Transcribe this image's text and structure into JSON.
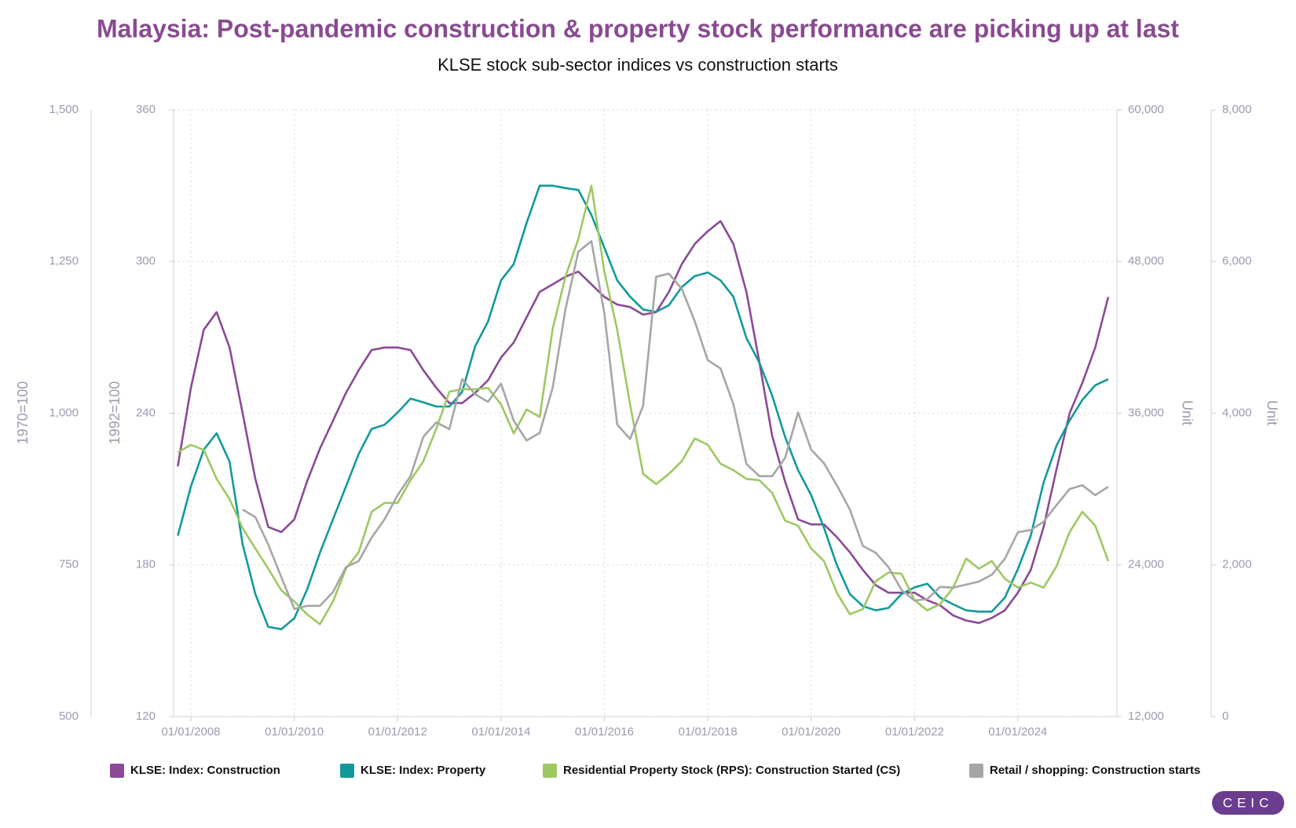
{
  "chart_data": {
    "type": "line",
    "title": "Malaysia: Post-pandemic construction & property stock performance are picking up at last",
    "subtitle": "KLSE stock sub-sector indices vs construction starts",
    "ylabel": "1970=100",
    "y2label": "1992=100",
    "y3label": "Unit",
    "y4label": "Unit",
    "logo": "CEIC",
    "grid": true,
    "legend": "bottom",
    "xlim": [
      "2007-09-01",
      "2025-12-01"
    ],
    "xticks": [
      {
        "value": "2008-01-01",
        "label": "01/01/2008"
      },
      {
        "value": "2010-01-01",
        "label": "01/01/2010"
      },
      {
        "value": "2012-01-01",
        "label": "01/01/2012"
      },
      {
        "value": "2014-01-01",
        "label": "01/01/2014"
      },
      {
        "value": "2016-01-01",
        "label": "01/01/2016"
      },
      {
        "value": "2018-01-01",
        "label": "01/01/2018"
      },
      {
        "value": "2020-01-01",
        "label": "01/01/2020"
      },
      {
        "value": "2022-01-01",
        "label": "01/01/2022"
      },
      {
        "value": "2024-01-01",
        "label": "01/01/2024"
      }
    ],
    "ylim": [
      500,
      1500
    ],
    "yticks": [
      500,
      750,
      {
        "value": 1000,
        "label": "1,000"
      },
      {
        "value": 1250,
        "label": "1,250"
      },
      {
        "value": 1500,
        "label": "1,500"
      }
    ],
    "y2lim": [
      120,
      360
    ],
    "y2ticks": [
      120,
      180,
      240,
      300,
      360
    ],
    "y3lim": [
      12000,
      60000
    ],
    "y3ticks": [
      {
        "value": 12000,
        "label": "12,000"
      },
      {
        "value": 24000,
        "label": "24,000"
      },
      {
        "value": 36000,
        "label": "36,000"
      },
      {
        "value": 48000,
        "label": "48,000"
      },
      {
        "value": 60000,
        "label": "60,000"
      }
    ],
    "y4lim": [
      0,
      8000
    ],
    "y4ticks": [
      0,
      {
        "value": 2000,
        "label": "2,000"
      },
      {
        "value": 4000,
        "label": "4,000"
      },
      {
        "value": 6000,
        "label": "6,000"
      },
      {
        "value": 8000,
        "label": "8,000"
      }
    ],
    "x": [
      "2007-10-01",
      "2008-01-01",
      "2008-04-01",
      "2008-07-01",
      "2008-10-01",
      "2009-01-01",
      "2009-04-01",
      "2009-07-01",
      "2009-10-01",
      "2010-01-01",
      "2010-04-01",
      "2010-07-01",
      "2010-10-01",
      "2011-01-01",
      "2011-04-01",
      "2011-07-01",
      "2011-10-01",
      "2012-01-01",
      "2012-04-01",
      "2012-07-01",
      "2012-10-01",
      "2013-01-01",
      "2013-04-01",
      "2013-07-01",
      "2013-10-01",
      "2014-01-01",
      "2014-04-01",
      "2014-07-01",
      "2014-10-01",
      "2015-01-01",
      "2015-04-01",
      "2015-07-01",
      "2015-10-01",
      "2016-01-01",
      "2016-04-01",
      "2016-07-01",
      "2016-10-01",
      "2017-01-01",
      "2017-04-01",
      "2017-07-01",
      "2017-10-01",
      "2018-01-01",
      "2018-04-01",
      "2018-07-01",
      "2018-10-01",
      "2019-01-01",
      "2019-04-01",
      "2019-07-01",
      "2019-10-01",
      "2020-01-01",
      "2020-04-01",
      "2020-07-01",
      "2020-10-01",
      "2021-01-01",
      "2021-04-01",
      "2021-07-01",
      "2021-10-01",
      "2022-01-01",
      "2022-04-01",
      "2022-07-01",
      "2022-10-01",
      "2023-01-01",
      "2023-04-01",
      "2023-07-01",
      "2023-10-01",
      "2024-01-01",
      "2024-04-01",
      "2024-07-01",
      "2024-10-01",
      "2025-01-01",
      "2025-04-01",
      "2025-07-01",
      "2025-10-01"
    ],
    "series": [
      {
        "name": "KLSE: Index: Construction",
        "color": "#8b4a96",
        "axis": "y2",
        "values": [
          219,
          250,
          273,
          280,
          266,
          240,
          214,
          195,
          193,
          198,
          213,
          226,
          237,
          248,
          257,
          265,
          266,
          266,
          265,
          257,
          250,
          244,
          244,
          248,
          253,
          262,
          268,
          278,
          288,
          291,
          294,
          296,
          291,
          286,
          283,
          282,
          279,
          280,
          288,
          299,
          307,
          312,
          316,
          307,
          288,
          260,
          231,
          213,
          198,
          196,
          196,
          191,
          185,
          178,
          172,
          169,
          169,
          169,
          166,
          164,
          160,
          158,
          157,
          159,
          162,
          169,
          178,
          195,
          218,
          240,
          252,
          266,
          286
        ]
      },
      {
        "name": "KLSE: Index: Property",
        "color": "#13999a",
        "axis": "y",
        "values": [
          798,
          879,
          940,
          967,
          920,
          784,
          702,
          648,
          644,
          662,
          709,
          770,
          825,
          879,
          933,
          974,
          981,
          1001,
          1024,
          1018,
          1011,
          1011,
          1035,
          1110,
          1151,
          1219,
          1246,
          1314,
          1375,
          1375,
          1371,
          1368,
          1327,
          1273,
          1219,
          1192,
          1171,
          1167,
          1178,
          1208,
          1226,
          1232,
          1219,
          1192,
          1124,
          1083,
          1029,
          961,
          906,
          865,
          811,
          750,
          702,
          682,
          675,
          679,
          702,
          713,
          719,
          696,
          685,
          675,
          673,
          673,
          696,
          743,
          798,
          886,
          947,
          988,
          1022,
          1046,
          1056
        ]
      },
      {
        "name": "Residential Property Stock (RPS): Construction Started (CS)",
        "color": "#9dc862",
        "axis": "y3",
        "values": [
          32900,
          33500,
          33100,
          30800,
          29200,
          26900,
          25300,
          23700,
          22000,
          21100,
          20100,
          19300,
          21100,
          23700,
          25000,
          28200,
          28900,
          28900,
          30700,
          32200,
          34800,
          37700,
          37900,
          37900,
          38000,
          36700,
          34400,
          36300,
          35700,
          42700,
          46800,
          49800,
          54000,
          47200,
          42600,
          36700,
          31200,
          30400,
          31200,
          32200,
          34000,
          33500,
          32000,
          31500,
          30800,
          30700,
          29700,
          27500,
          27100,
          25300,
          24300,
          21800,
          20100,
          20500,
          22700,
          23400,
          23300,
          21200,
          20400,
          20900,
          22200,
          24500,
          23700,
          24300,
          22900,
          22200,
          22600,
          22200,
          23900,
          26600,
          28200,
          27100,
          24300
        ]
      },
      {
        "name": "Retail / shopping: Construction starts",
        "color": "#a6a6a6",
        "axis": "y4",
        "values": [
          null,
          null,
          null,
          null,
          null,
          2730,
          2630,
          2270,
          1840,
          1420,
          1460,
          1460,
          1640,
          1970,
          2050,
          2360,
          2600,
          2920,
          3170,
          3690,
          3880,
          3790,
          4450,
          4250,
          4150,
          4390,
          3900,
          3640,
          3740,
          4340,
          5370,
          6130,
          6270,
          5320,
          3850,
          3660,
          4100,
          5800,
          5840,
          5640,
          5210,
          4700,
          4590,
          4120,
          3330,
          3170,
          3170,
          3410,
          4010,
          3520,
          3340,
          3050,
          2730,
          2250,
          2160,
          1970,
          1670,
          1530,
          1550,
          1710,
          1700,
          1740,
          1780,
          1870,
          2080,
          2430,
          2460,
          2570,
          2790,
          3000,
          3050,
          2920,
          3030
        ]
      }
    ]
  }
}
